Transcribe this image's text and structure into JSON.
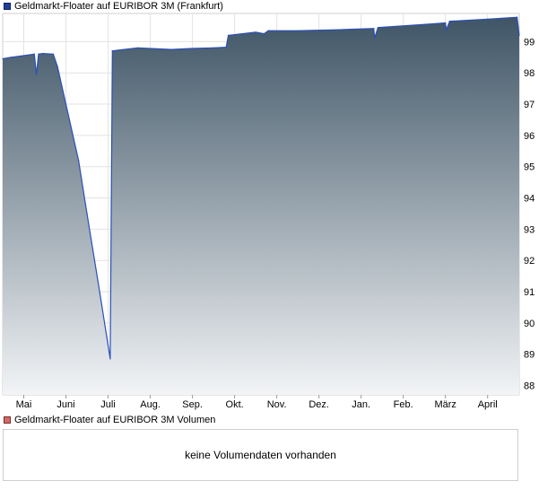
{
  "legend": {
    "price_label": "Geldmarkt-Floater auf EURIBOR 3M (Frankfurt)",
    "volume_label": "Geldmarkt-Floater auf EURIBOR 3M Volumen"
  },
  "volume": {
    "empty_message": "keine Volumendaten vorhanden"
  },
  "colors": {
    "line": "#2a4fb8",
    "fill_top": "#3f5566",
    "fill_bottom": "#f2f4f6",
    "grid": "#e3e3e3",
    "price_legend": "#1f3f99",
    "volume_legend": "#d46a6a"
  },
  "chart_data": {
    "type": "area",
    "title": "Geldmarkt-Floater auf EURIBOR 3M (Frankfurt)",
    "x_tick_labels": [
      "Mai",
      "Juni",
      "Juli",
      "Aug.",
      "Sep.",
      "Okt.",
      "Nov.",
      "Dez.",
      "Jan.",
      "Feb.",
      "März",
      "April"
    ],
    "y_ticks": [
      88,
      89,
      90,
      91,
      92,
      93,
      94,
      95,
      96,
      97,
      98,
      99
    ],
    "ylim": [
      87.7,
      99.9
    ],
    "y_axis_side": "right",
    "grid": true,
    "x_unit": "months since start of chart (0 = mid-April)",
    "x": [
      0,
      0.2,
      0.5,
      0.75,
      0.8,
      0.85,
      0.95,
      1.2,
      1.3,
      1.5,
      1.8,
      2.0,
      2.3,
      2.55,
      2.6,
      2.7,
      3.2,
      4.0,
      4.5,
      5.0,
      5.3,
      5.35,
      6.0,
      6.2,
      6.3,
      7.0,
      8.0,
      8.8,
      8.82,
      8.9,
      10.0,
      10.5,
      10.52,
      10.6,
      11.5,
      12.2,
      12.25
    ],
    "y": [
      98.45,
      98.5,
      98.55,
      98.6,
      97.95,
      98.6,
      98.62,
      98.6,
      98.2,
      97.0,
      95.2,
      93.5,
      91.0,
      88.85,
      98.7,
      98.72,
      98.8,
      98.75,
      98.78,
      98.8,
      98.82,
      99.2,
      99.3,
      99.25,
      99.35,
      99.35,
      99.38,
      99.42,
      99.12,
      99.45,
      99.55,
      99.6,
      99.38,
      99.65,
      99.72,
      99.78,
      99.2
    ]
  }
}
